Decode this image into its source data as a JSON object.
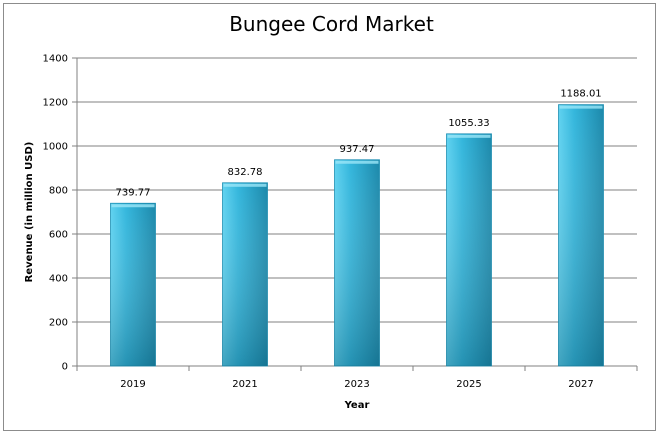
{
  "chart_data": {
    "type": "bar",
    "title": "Bungee Cord Market",
    "xlabel": "Year",
    "ylabel": "Revenue (in million USD)",
    "categories": [
      "2019",
      "2021",
      "2023",
      "2025",
      "2027"
    ],
    "values": [
      739.77,
      832.78,
      937.47,
      1055.33,
      1188.01
    ],
    "data_labels": [
      "739.77",
      "832.78",
      "937.47",
      "1055.33",
      "1188.01"
    ],
    "ylim": [
      0,
      1400
    ],
    "yticks": [
      0,
      200,
      400,
      600,
      800,
      1000,
      1200,
      1400
    ],
    "grid": true,
    "legend": "none",
    "colors": {
      "bar_light": "#5fd2f0",
      "bar_mid": "#33b6dc",
      "bar_dark": "#1b88aa",
      "grid": "#808080",
      "axis": "#808080"
    }
  }
}
